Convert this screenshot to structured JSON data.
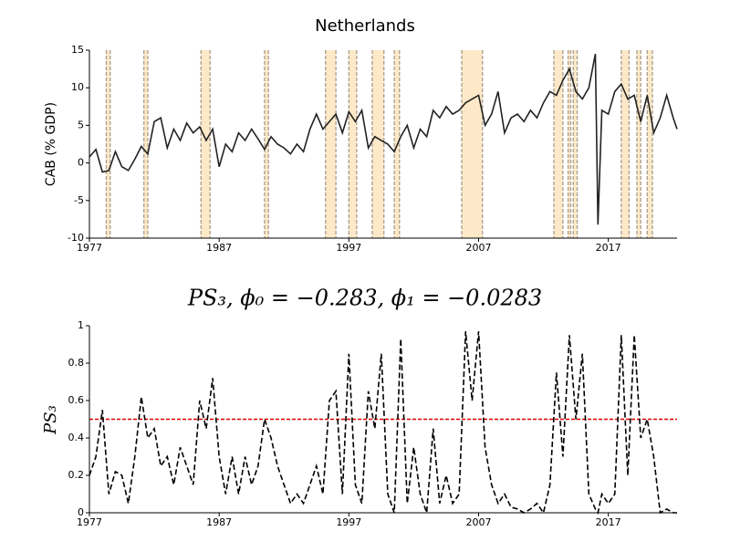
{
  "chart_data": [
    {
      "type": "line",
      "title": "Netherlands",
      "y_label": "CAB (% GDP)",
      "x": [
        1977.0,
        1977.5,
        1978.0,
        1978.5,
        1979.0,
        1979.5,
        1980.0,
        1980.5,
        1981.0,
        1981.5,
        1982.0,
        1982.5,
        1983.0,
        1983.5,
        1984.0,
        1984.5,
        1985.0,
        1985.5,
        1986.0,
        1986.5,
        1987.0,
        1987.5,
        1988.0,
        1988.5,
        1989.0,
        1989.5,
        1990.0,
        1990.5,
        1991.0,
        1991.5,
        1992.0,
        1992.5,
        1993.0,
        1993.5,
        1994.0,
        1994.5,
        1995.0,
        1995.5,
        1996.0,
        1996.5,
        1997.0,
        1997.5,
        1998.0,
        1998.5,
        1999.0,
        1999.5,
        2000.0,
        2000.5,
        2001.0,
        2001.5,
        2002.0,
        2002.5,
        2003.0,
        2003.5,
        2004.0,
        2004.5,
        2005.0,
        2005.5,
        2006.0,
        2006.5,
        2007.0,
        2007.5,
        2008.0,
        2008.5,
        2009.0,
        2009.5,
        2010.0,
        2010.5,
        2011.0,
        2011.5,
        2012.0,
        2012.5,
        2013.0,
        2013.5,
        2014.0,
        2014.5,
        2015.0,
        2015.5,
        2016.0,
        2016.2,
        2016.5,
        2017.0,
        2017.5,
        2018.0,
        2018.5,
        2019.0,
        2019.5,
        2020.0,
        2020.5,
        2021.0,
        2021.5,
        2022.0,
        2022.3
      ],
      "series": [
        {
          "color": "#222222",
          "dash": false,
          "values": [
            0.8,
            1.8,
            -1.2,
            -1.0,
            1.5,
            -0.5,
            -1.0,
            0.5,
            2.2,
            1.2,
            5.5,
            6.0,
            2.0,
            4.5,
            3.0,
            5.3,
            4.0,
            4.8,
            3.0,
            4.5,
            -0.5,
            2.5,
            1.5,
            4.0,
            3.0,
            4.5,
            3.2,
            1.8,
            3.5,
            2.5,
            2.0,
            1.2,
            2.5,
            1.5,
            4.5,
            6.5,
            4.5,
            5.5,
            6.5,
            4.0,
            6.8,
            5.5,
            7.0,
            2.0,
            3.5,
            3.0,
            2.5,
            1.5,
            3.5,
            5.0,
            2.0,
            4.5,
            3.5,
            7.0,
            6.0,
            7.5,
            6.5,
            7.0,
            8.0,
            8.5,
            9.0,
            5.0,
            6.5,
            9.5,
            4.0,
            6.0,
            6.5,
            5.5,
            7.0,
            6.0,
            8.0,
            9.5,
            9.0,
            11.0,
            12.5,
            9.5,
            8.5,
            10.0,
            14.5,
            -8.2,
            7.0,
            6.5,
            9.5,
            10.5,
            8.5,
            9.0,
            5.5,
            9.0,
            4.0,
            6.0,
            9.0,
            6.0,
            4.5
          ]
        }
      ],
      "shaded_periods": [
        [
          1978.3,
          1978.6
        ],
        [
          1981.2,
          1981.5
        ],
        [
          1985.6,
          1986.3
        ],
        [
          1990.5,
          1990.8
        ],
        [
          1995.2,
          1996.0
        ],
        [
          1997.0,
          1997.6
        ],
        [
          1998.8,
          1999.7
        ],
        [
          2000.5,
          2000.9
        ],
        [
          2005.7,
          2007.3
        ],
        [
          2012.8,
          2013.5
        ],
        [
          2013.9,
          2014.1
        ],
        [
          2014.3,
          2014.6
        ],
        [
          2018.0,
          2018.6
        ],
        [
          2019.2,
          2019.5
        ],
        [
          2020.0,
          2020.4
        ]
      ],
      "xlim": [
        1977,
        2022.3
      ],
      "xticks": [
        1977,
        1987,
        1997,
        2007,
        2017
      ],
      "ylim": [
        -10,
        15
      ],
      "yticks": [
        -10,
        -5,
        0,
        5,
        10,
        15
      ]
    },
    {
      "type": "line",
      "title": "PS₃, ϕ₀ = −0.283, ϕ₁ = −0.0283",
      "y_label": "PS₃",
      "x": [
        1977.0,
        1977.5,
        1978.0,
        1978.5,
        1979.0,
        1979.5,
        1980.0,
        1980.5,
        1981.0,
        1981.5,
        1982.0,
        1982.5,
        1983.0,
        1983.5,
        1984.0,
        1984.5,
        1985.0,
        1985.5,
        1986.0,
        1986.5,
        1987.0,
        1987.5,
        1988.0,
        1988.5,
        1989.0,
        1989.5,
        1990.0,
        1990.5,
        1991.0,
        1991.5,
        1992.0,
        1992.5,
        1993.0,
        1993.5,
        1994.0,
        1994.5,
        1995.0,
        1995.5,
        1996.0,
        1996.5,
        1997.0,
        1997.5,
        1998.0,
        1998.5,
        1999.0,
        1999.5,
        2000.0,
        2000.5,
        2001.0,
        2001.5,
        2002.0,
        2002.5,
        2003.0,
        2003.5,
        2004.0,
        2004.5,
        2005.0,
        2005.5,
        2006.0,
        2006.5,
        2007.0,
        2007.5,
        2008.0,
        2008.5,
        2009.0,
        2009.5,
        2010.0,
        2010.5,
        2011.0,
        2011.5,
        2012.0,
        2012.5,
        2013.0,
        2013.5,
        2014.0,
        2014.5,
        2015.0,
        2015.5,
        2016.0,
        2016.2,
        2016.5,
        2017.0,
        2017.5,
        2018.0,
        2018.5,
        2019.0,
        2019.5,
        2020.0,
        2020.5,
        2021.0,
        2021.5,
        2022.0,
        2022.3
      ],
      "series": [
        {
          "color": "#000000",
          "dash": true,
          "values": [
            0.2,
            0.3,
            0.55,
            0.1,
            0.22,
            0.2,
            0.05,
            0.3,
            0.62,
            0.4,
            0.45,
            0.25,
            0.3,
            0.15,
            0.35,
            0.25,
            0.15,
            0.6,
            0.45,
            0.72,
            0.3,
            0.1,
            0.3,
            0.1,
            0.3,
            0.15,
            0.25,
            0.5,
            0.4,
            0.25,
            0.15,
            0.05,
            0.1,
            0.05,
            0.15,
            0.25,
            0.1,
            0.6,
            0.65,
            0.1,
            0.85,
            0.15,
            0.05,
            0.65,
            0.45,
            0.85,
            0.1,
            0.0,
            0.93,
            0.05,
            0.35,
            0.1,
            0.0,
            0.45,
            0.05,
            0.2,
            0.05,
            0.1,
            0.97,
            0.6,
            0.97,
            0.35,
            0.15,
            0.05,
            0.1,
            0.03,
            0.02,
            0.0,
            0.02,
            0.05,
            0.0,
            0.15,
            0.75,
            0.3,
            0.95,
            0.5,
            0.85,
            0.1,
            0.02,
            0.0,
            0.1,
            0.05,
            0.1,
            0.95,
            0.2,
            0.95,
            0.4,
            0.5,
            0.3,
            0.0,
            0.02,
            0.0,
            0.0
          ]
        }
      ],
      "threshold": 0.5,
      "threshold_color": "#e00000",
      "xlim": [
        1977,
        2022.3
      ],
      "xticks": [
        1977,
        1987,
        1997,
        2007,
        2017
      ],
      "ylim": [
        0,
        1
      ],
      "yticks": [
        0,
        0.2,
        0.4,
        0.6,
        0.8,
        1
      ]
    }
  ]
}
